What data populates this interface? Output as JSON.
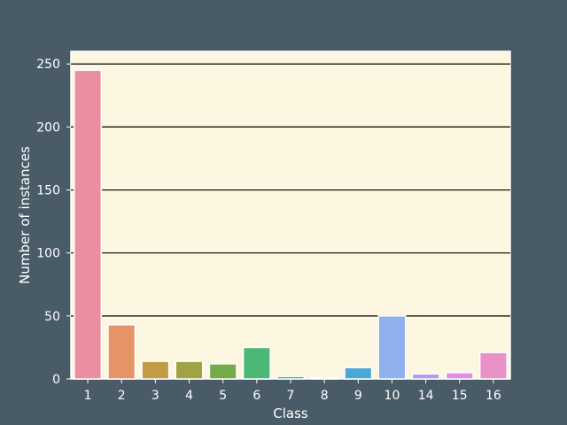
{
  "colors": {
    "figure_bg": "#485b66",
    "plot_bg": "#fdf6e0",
    "grid": "#000000",
    "text": "#ffffff"
  },
  "chart_data": {
    "type": "bar",
    "title": "",
    "xlabel": "Class",
    "ylabel": "Number of instances",
    "categories": [
      "1",
      "2",
      "3",
      "4",
      "5",
      "6",
      "7",
      "8",
      "9",
      "10",
      "14",
      "15",
      "16"
    ],
    "values": [
      245,
      43,
      14,
      14,
      12,
      25,
      2,
      1,
      9,
      50,
      4,
      5,
      21
    ],
    "bar_colors": [
      "#ea8f9f",
      "#e59565",
      "#c19c46",
      "#a1a342",
      "#72ab49",
      "#4db776",
      "#3eb3a3",
      "#41adbc",
      "#4aa7d6",
      "#8fb0ec",
      "#b59aee",
      "#e28de4",
      "#ea91c8"
    ],
    "ylim": [
      0,
      260
    ],
    "yticks": [
      0,
      50,
      100,
      150,
      200,
      250
    ],
    "grid": "horizontal",
    "legend": "none"
  }
}
